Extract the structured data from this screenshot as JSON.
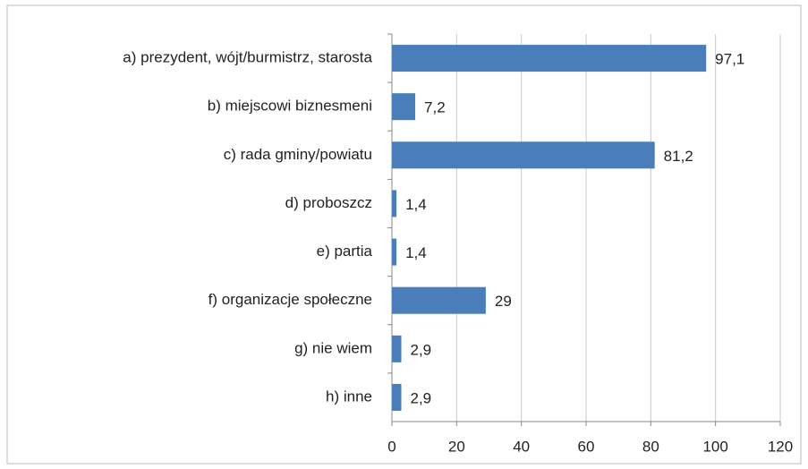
{
  "chart_data": {
    "type": "bar",
    "orientation": "horizontal",
    "categories": [
      "a) prezydent, wójt/burmistrz, starosta",
      "b) miejscowi biznesmeni",
      "c) rada gminy/powiatu",
      "d) proboszcz",
      "e) partia",
      "f) organizacje społeczne",
      "g) nie wiem",
      "h) inne"
    ],
    "values": [
      97.1,
      7.2,
      81.2,
      1.4,
      1.4,
      29,
      2.9,
      2.9
    ],
    "value_labels": [
      "97,1",
      "7,2",
      "81,2",
      "1,4",
      "1,4",
      "29",
      "2,9",
      "2,9"
    ],
    "color": "#4a7ebb",
    "xlim": [
      0,
      120
    ],
    "xticks": [
      0,
      20,
      40,
      60,
      80,
      100,
      120
    ],
    "grid": true
  }
}
